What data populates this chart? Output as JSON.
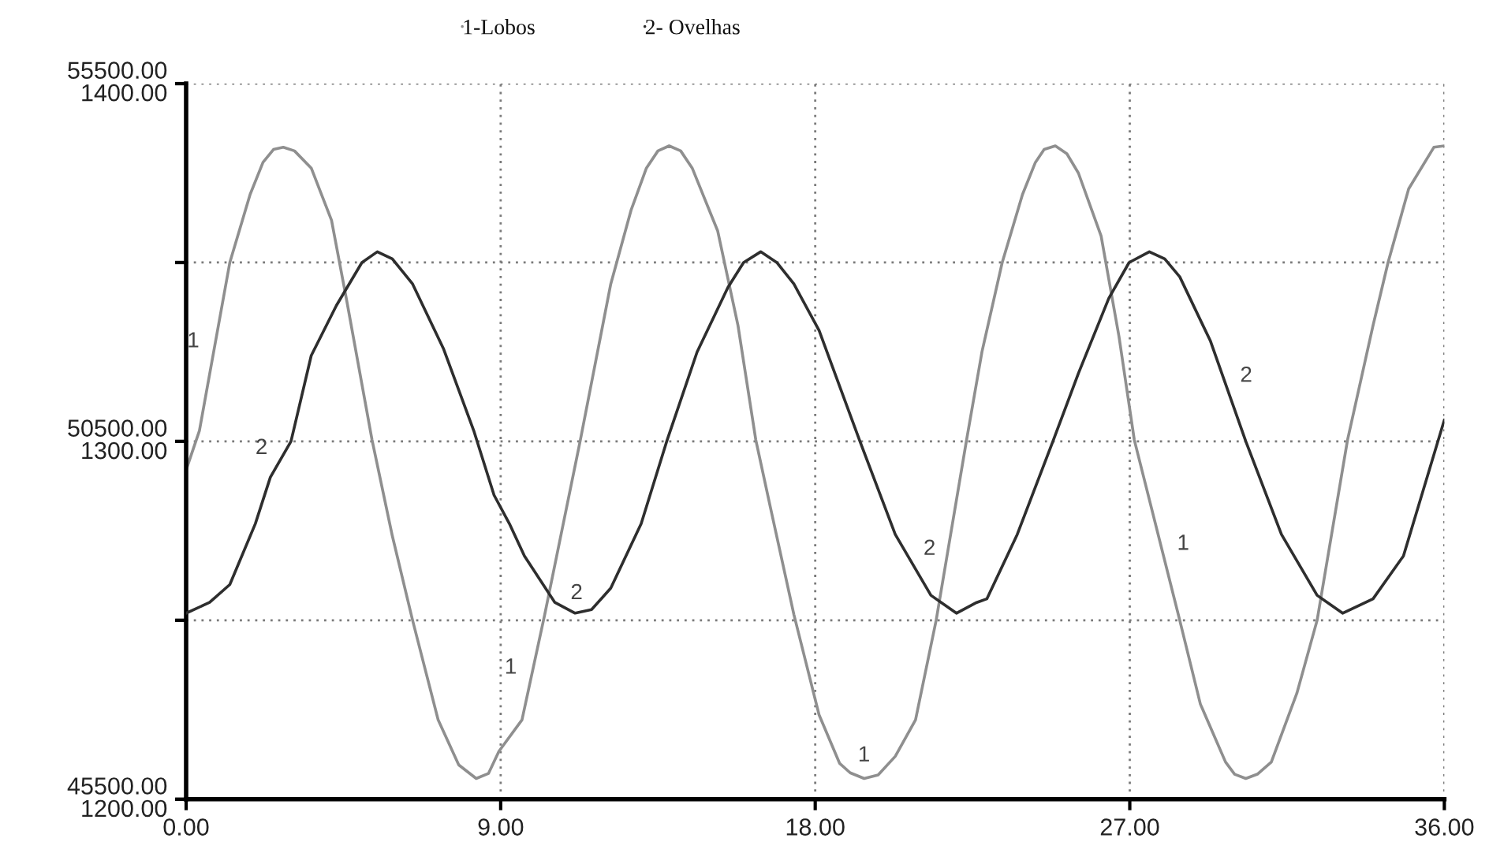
{
  "chart_data": {
    "type": "line",
    "series": [
      {
        "name": "1-Lobos",
        "color": "#8f8f8f",
        "x": [
          0,
          0.38,
          1.25,
          1.83,
          2.2,
          2.5,
          2.78,
          3.1,
          3.58,
          4.16,
          4.59,
          5.32,
          5.9,
          6.48,
          7.21,
          7.8,
          8.3,
          8.65,
          8.95,
          9.61,
          10.26,
          11.28,
          12.15,
          12.73,
          13.17,
          13.5,
          13.82,
          14.15,
          14.48,
          15.21,
          15.79,
          16.3,
          16.73,
          17.39,
          18.11,
          18.7,
          19.0,
          19.4,
          19.8,
          20.29,
          20.87,
          21.46,
          22.33,
          22.77,
          23.35,
          23.93,
          24.3,
          24.55,
          24.87,
          25.2,
          25.53,
          26.18,
          26.69,
          27.13,
          28.43,
          29.02,
          29.74,
          30.0,
          30.32,
          30.65,
          31.05,
          31.78,
          32.36,
          33.23,
          33.96,
          34.39,
          34.98,
          35.7,
          36
        ],
        "values": [
          50100,
          50650,
          53000,
          53950,
          54400,
          54580,
          54610,
          54560,
          54320,
          53590,
          52480,
          50520,
          49180,
          48000,
          46610,
          45980,
          45790,
          45860,
          46170,
          46610,
          48080,
          50520,
          52700,
          53730,
          54320,
          54560,
          54630,
          54560,
          54320,
          53440,
          52120,
          50520,
          49550,
          48080,
          46680,
          46000,
          45870,
          45790,
          45840,
          46100,
          46610,
          48000,
          50520,
          51750,
          53000,
          53950,
          54400,
          54580,
          54630,
          54520,
          54250,
          53370,
          51970,
          50520,
          48000,
          46830,
          46020,
          45850,
          45790,
          45850,
          46020,
          46980,
          48000,
          50520,
          52120,
          53000,
          54030,
          54610,
          54630
        ]
      },
      {
        "name": "2- Ovelhas",
        "color": "#2e2e2e",
        "axis": "y2",
        "x": [
          0,
          0.67,
          1.25,
          1.98,
          2.41,
          3.0,
          3.58,
          4.3,
          5.03,
          5.47,
          5.9,
          6.48,
          7.36,
          8.23,
          8.81,
          9.25,
          9.68,
          10.55,
          11.13,
          11.6,
          12.15,
          13.02,
          13.75,
          14.62,
          15.5,
          15.95,
          16.44,
          16.9,
          17.39,
          18.11,
          19.28,
          20.29,
          21.31,
          22.04,
          22.62,
          22.91,
          23.78,
          24.8,
          25.53,
          26.4,
          26.98,
          27.56,
          28.0,
          28.43,
          29.31,
          30.32,
          31.34,
          32.36,
          33.09,
          33.96,
          34.83,
          36
        ],
        "values": [
          1252,
          1255,
          1260,
          1277,
          1290,
          1300,
          1324,
          1338,
          1350,
          1353,
          1351,
          1344,
          1326,
          1303,
          1285,
          1277,
          1268,
          1255,
          1252,
          1253,
          1259,
          1277,
          1300,
          1325,
          1343,
          1350,
          1353,
          1350,
          1344,
          1331,
          1300,
          1274,
          1257,
          1252,
          1255,
          1256,
          1274,
          1300,
          1319,
          1340,
          1350,
          1353,
          1351,
          1346,
          1328,
          1300,
          1274,
          1257,
          1252,
          1256,
          1268,
          1306
        ]
      }
    ],
    "xlim": [
      0,
      36
    ],
    "xticks": [
      {
        "value": 0,
        "label": "0.00"
      },
      {
        "value": 9,
        "label": "9.00"
      },
      {
        "value": 18,
        "label": "18.00"
      },
      {
        "value": 27,
        "label": "27.00"
      },
      {
        "value": 36,
        "label": "36.00"
      }
    ],
    "ylim": [
      45500,
      55500
    ],
    "yticks": [
      {
        "value": 45500,
        "label": "45500.00"
      },
      {
        "value": 48000,
        "label": null
      },
      {
        "value": 50500,
        "label": "50500.00"
      },
      {
        "value": 53000,
        "label": null
      },
      {
        "value": 55500,
        "label": "55500.00"
      }
    ],
    "y2lim": [
      1200,
      1400
    ],
    "y2ticks": [
      {
        "value": 1200,
        "label": "1200.00"
      },
      {
        "value": 1250,
        "label": null
      },
      {
        "value": 1300,
        "label": "1300.00"
      },
      {
        "value": 1350,
        "label": null
      },
      {
        "value": 1400,
        "label": "1400.00"
      }
    ],
    "annotations": [
      {
        "text": "1",
        "x": 0.82,
        "y": 51840
      },
      {
        "text": "1",
        "x": 9.9,
        "y": 47270
      },
      {
        "text": "1",
        "x": 18.98,
        "y": 45880
      },
      {
        "text": "1",
        "x": 27.92,
        "y": 48990
      },
      {
        "text": "2",
        "x": 2.7,
        "y": 50250
      },
      {
        "text": "2",
        "x": 11.64,
        "y": 48170
      },
      {
        "text": "2",
        "x": 20.73,
        "y": 48840
      },
      {
        "text": "2",
        "x": 29.74,
        "y": 51310
      }
    ],
    "grid": true,
    "legend": "top"
  }
}
